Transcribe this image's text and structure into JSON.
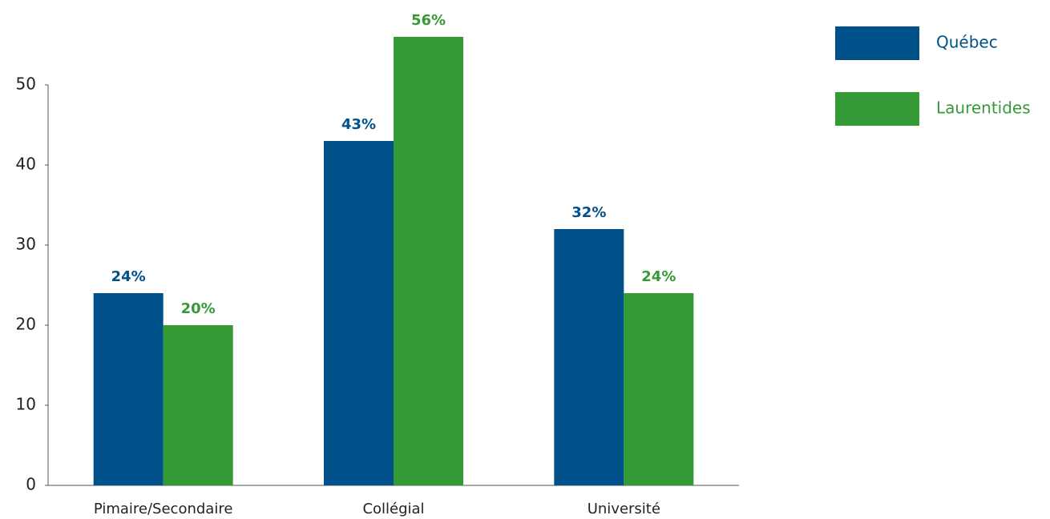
{
  "chart_data": {
    "type": "bar",
    "categories": [
      "Pimaire/Secondaire",
      "Collégial",
      "Université"
    ],
    "series": [
      {
        "name": "Québec",
        "color": "#00508a",
        "values": [
          24,
          43,
          32
        ],
        "value_labels": [
          "24%",
          "43%",
          "32%"
        ]
      },
      {
        "name": "Laurentides",
        "color": "#349a35",
        "values": [
          20,
          56,
          24
        ],
        "value_labels": [
          "20%",
          "56%",
          "24%"
        ]
      }
    ],
    "ylim": [
      0,
      50
    ],
    "yticks": [
      0,
      10,
      20,
      30,
      40,
      50
    ],
    "grid": false,
    "legend": "top-right"
  }
}
